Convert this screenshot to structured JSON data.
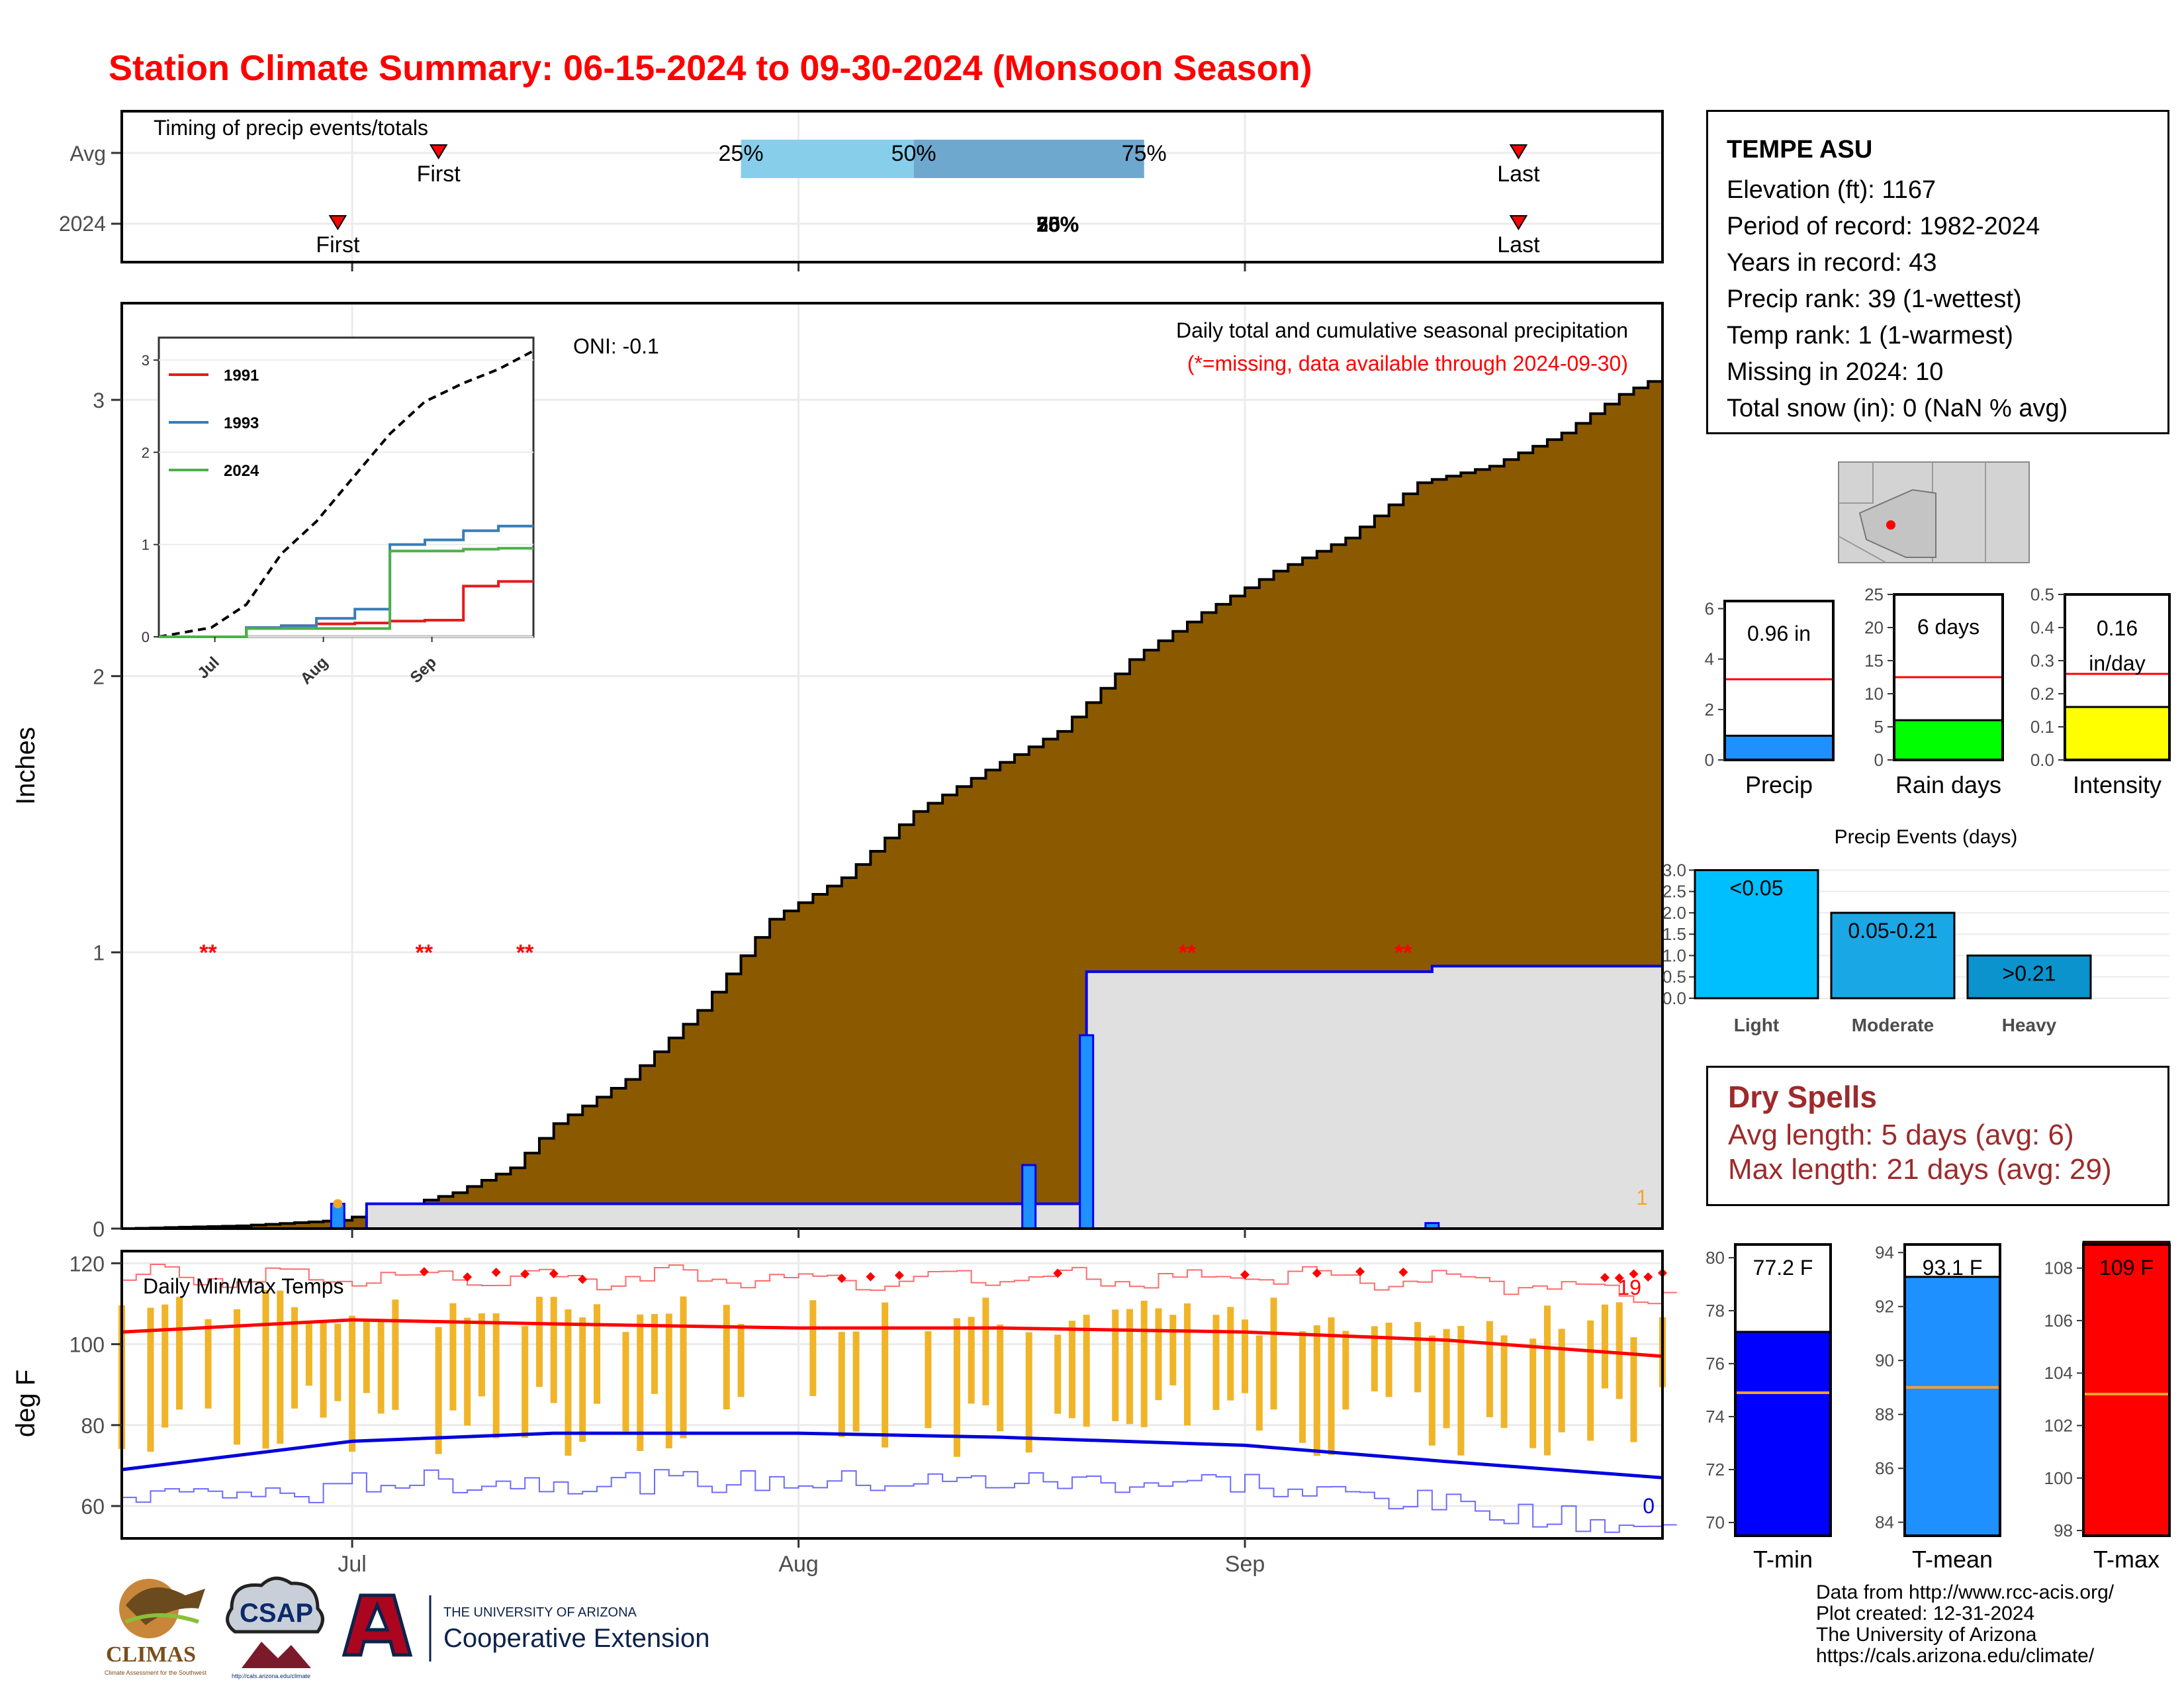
{
  "title": "Station Climate Summary: 06-15-2024 to 09-30-2024 (Monsoon Season)",
  "timing": {
    "label": "Timing of precip events/totals",
    "rows": [
      "Avg",
      "2024"
    ],
    "avg": {
      "first": "First",
      "last": "Last",
      "p25": "25%",
      "p50": "50%",
      "p75": "75%",
      "first_date": "2024-07-07",
      "last_date": "2024-09-20",
      "p25_date": "2024-07-28",
      "p50_date": "2024-08-09",
      "p75_date": "2024-08-25"
    },
    "y2024": {
      "first": "First",
      "last": "Last",
      "overlap_label": "25%",
      "overlap_label2": "50%",
      "overlap_label3": "75%",
      "first_date": "2024-06-30",
      "last_date": "2024-09-20",
      "pct_date": "2024-08-19"
    },
    "colors": {
      "early": "#87ceeb",
      "late": "#6fa8cf",
      "marker": "#ff0000"
    }
  },
  "station": {
    "name": "TEMPE ASU",
    "lines": [
      "Elevation (ft): 1167",
      "Period of record: 1982-2024",
      "Years in record: 43",
      "Precip rank: 39 (1-wettest)",
      "Temp rank: 1 (1-warmest)",
      "Missing in 2024: 10",
      "Total snow (in): 0 (NaN % avg)"
    ]
  },
  "main": {
    "ylabel": "Inches",
    "oni": "ONI: -0.1",
    "note1": "Daily total and cumulative seasonal precipitation",
    "note2": "(*=missing, data available through 2024-09-30)",
    "count_label": "1",
    "missing_marker": "**",
    "missing_dates": [
      "2024-06-21",
      "2024-07-06",
      "2024-07-13",
      "2024-08-28",
      "2024-09-12"
    ],
    "month_labels": [
      "Jul",
      "Aug",
      "Sep"
    ],
    "colors": {
      "avg_fill": "#8b5a00",
      "cur_fill": "#e0e0e0",
      "cur_line": "#0000ee",
      "daily_bar": "#1e90ff"
    }
  },
  "chart_data": [
    {
      "type": "area",
      "title": "Daily total and cumulative seasonal precipitation",
      "ylabel": "Inches",
      "ylim": [
        0,
        3.35
      ],
      "x_range": [
        "2024-06-15",
        "2024-09-30"
      ],
      "series": [
        {
          "name": "",
          "x": [
            "2024-06-15",
            "2024-06-23",
            "2024-06-30",
            "2024-07-05",
            "2024-07-08",
            "2024-07-12",
            "2024-07-15",
            "2024-07-20",
            "2024-07-25",
            "2024-07-30",
            "2024-08-04",
            "2024-08-09",
            "2024-08-14",
            "2024-08-19",
            "2024-08-24",
            "2024-08-29",
            "2024-09-03",
            "2024-09-08",
            "2024-09-13",
            "2024-09-18",
            "2024-09-23",
            "2024-09-27",
            "2024-09-30"
          ],
          "values": [
            0.0,
            0.01,
            0.03,
            0.09,
            0.13,
            0.22,
            0.38,
            0.54,
            0.79,
            1.12,
            1.27,
            1.51,
            1.66,
            1.8,
            2.06,
            2.23,
            2.38,
            2.5,
            2.7,
            2.76,
            2.88,
            3.02,
            3.09
          ]
        },
        {
          "name": "",
          "x": [
            "2024-06-15",
            "2024-06-30",
            "2024-07-02",
            "2024-08-20",
            "2024-08-21",
            "2024-09-14",
            "2024-09-30"
          ],
          "values": [
            0.0,
            0.0,
            0.09,
            0.09,
            0.93,
            0.95,
            0.96
          ]
        },
        {
          "name": "",
          "x": [
            "2024-06-30",
            "2024-08-17",
            "2024-08-21",
            "2024-09-14"
          ],
          "values": [
            0.09,
            0.23,
            0.7,
            0.02
          ]
        }
      ]
    },
    {
      "type": "line",
      "title": "",
      "x": [
        "2024-06-15",
        "2024-06-30",
        "2024-07-10",
        "2024-07-20",
        "2024-07-30",
        "2024-08-10",
        "2024-08-20",
        "2024-08-30",
        "2024-09-10",
        "2024-09-20",
        "2024-09-30"
      ],
      "ylim": [
        0,
        3.1
      ],
      "month_labels": [
        "Jul",
        "Aug",
        "Sep"
      ],
      "series": [
        {
          "name": "",
          "values": [
            0.0,
            0.1,
            0.35,
            0.9,
            1.25,
            1.75,
            2.2,
            2.55,
            2.75,
            2.9,
            3.1
          ]
        },
        {
          "name": "1991",
          "color": "#e41a1c",
          "values": [
            0.0,
            0.0,
            0.1,
            0.12,
            0.14,
            0.15,
            0.17,
            0.18,
            0.55,
            0.6,
            0.6
          ]
        },
        {
          "name": "1993",
          "color": "#377eb8",
          "values": [
            0.0,
            0.0,
            0.1,
            0.12,
            0.2,
            0.3,
            1.0,
            1.05,
            1.15,
            1.2,
            1.2
          ]
        },
        {
          "name": "2024",
          "color": "#4daf4a",
          "values": [
            0.0,
            0.0,
            0.09,
            0.09,
            0.09,
            0.09,
            0.93,
            0.93,
            0.95,
            0.96,
            0.96
          ]
        }
      ]
    },
    {
      "type": "line",
      "title": "Daily Min/Max Temps",
      "ylabel": "deg F",
      "ylim": [
        52,
        123
      ],
      "x_range": [
        "2024-06-15",
        "2024-09-30"
      ],
      "series": [
        {
          "name": "",
          "x": [
            "2024-06-15",
            "2024-07-01",
            "2024-07-15",
            "2024-08-01",
            "2024-08-15",
            "2024-09-01",
            "2024-09-15",
            "2024-09-30"
          ],
          "values": [
            103,
            106,
            105,
            104,
            104,
            103,
            101,
            97
          ]
        },
        {
          "name": "",
          "x": [
            "2024-06-15",
            "2024-07-01",
            "2024-07-15",
            "2024-08-01",
            "2024-08-15",
            "2024-09-01",
            "2024-09-15",
            "2024-09-30"
          ],
          "values": [
            69,
            76,
            78,
            78,
            77,
            75,
            71,
            67
          ]
        }
      ],
      "labels": {
        "max_count": "19",
        "min_count": "0"
      }
    },
    {
      "type": "bar",
      "title": "",
      "categories": [
        "Precip",
        "Rain days",
        "Intensity"
      ],
      "values": [
        0.96,
        6,
        0.16
      ],
      "avg": [
        3.2,
        12.5,
        0.26
      ],
      "ylims": [
        [
          0,
          6.3
        ],
        [
          0,
          25
        ],
        [
          0,
          0.5
        ]
      ],
      "labels": [
        "0.96 in",
        "6 days",
        "0.16 in/day"
      ],
      "colors": [
        "#1e90ff",
        "#00ff00",
        "#ffff00"
      ]
    },
    {
      "type": "bar",
      "title": "Precip Events (days)",
      "categories": [
        "Light",
        "Moderate",
        "Heavy"
      ],
      "values": [
        3,
        2,
        1
      ],
      "labels": [
        "<0.05",
        "0.05-0.21",
        ">0.21"
      ],
      "ylim": [
        0,
        3.1
      ],
      "colors": [
        "#00bfff",
        "#1aa7e6",
        "#0a93cc"
      ]
    },
    {
      "type": "bar",
      "title": "",
      "categories": [
        "T-min",
        "T-mean",
        "T-max"
      ],
      "values": [
        77.2,
        93.1,
        109
      ],
      "avg": [
        74.9,
        89.0,
        103.2
      ],
      "labels": [
        "77.2 F",
        "93.1 F",
        "109 F"
      ],
      "ylims": [
        [
          69.5,
          80.5
        ],
        [
          83.5,
          94.3
        ],
        [
          97.8,
          108.9
        ]
      ],
      "colors": [
        "#0000ff",
        "#1e90ff",
        "#ff0000"
      ]
    }
  ],
  "dry_spells": {
    "title": "Dry Spells",
    "avg": "Avg length: 5 days (avg: 6)",
    "max": "Max length: 21 days (avg: 29)"
  },
  "credits": [
    "Data from http://www.rcc-acis.org/",
    "Plot created: 12-31-2024",
    "The University of Arizona",
    "https://cals.arizona.edu/climate/"
  ],
  "logos": {
    "climas": "CLIMAS",
    "climas_sub": "Climate Assessment for the Southwest",
    "csap": "CSAP",
    "csap_url": "http://cals.arizona.edu/climate",
    "ua_small": "THE UNIVERSITY OF ARIZONA",
    "ua_big": "Cooperative Extension"
  }
}
